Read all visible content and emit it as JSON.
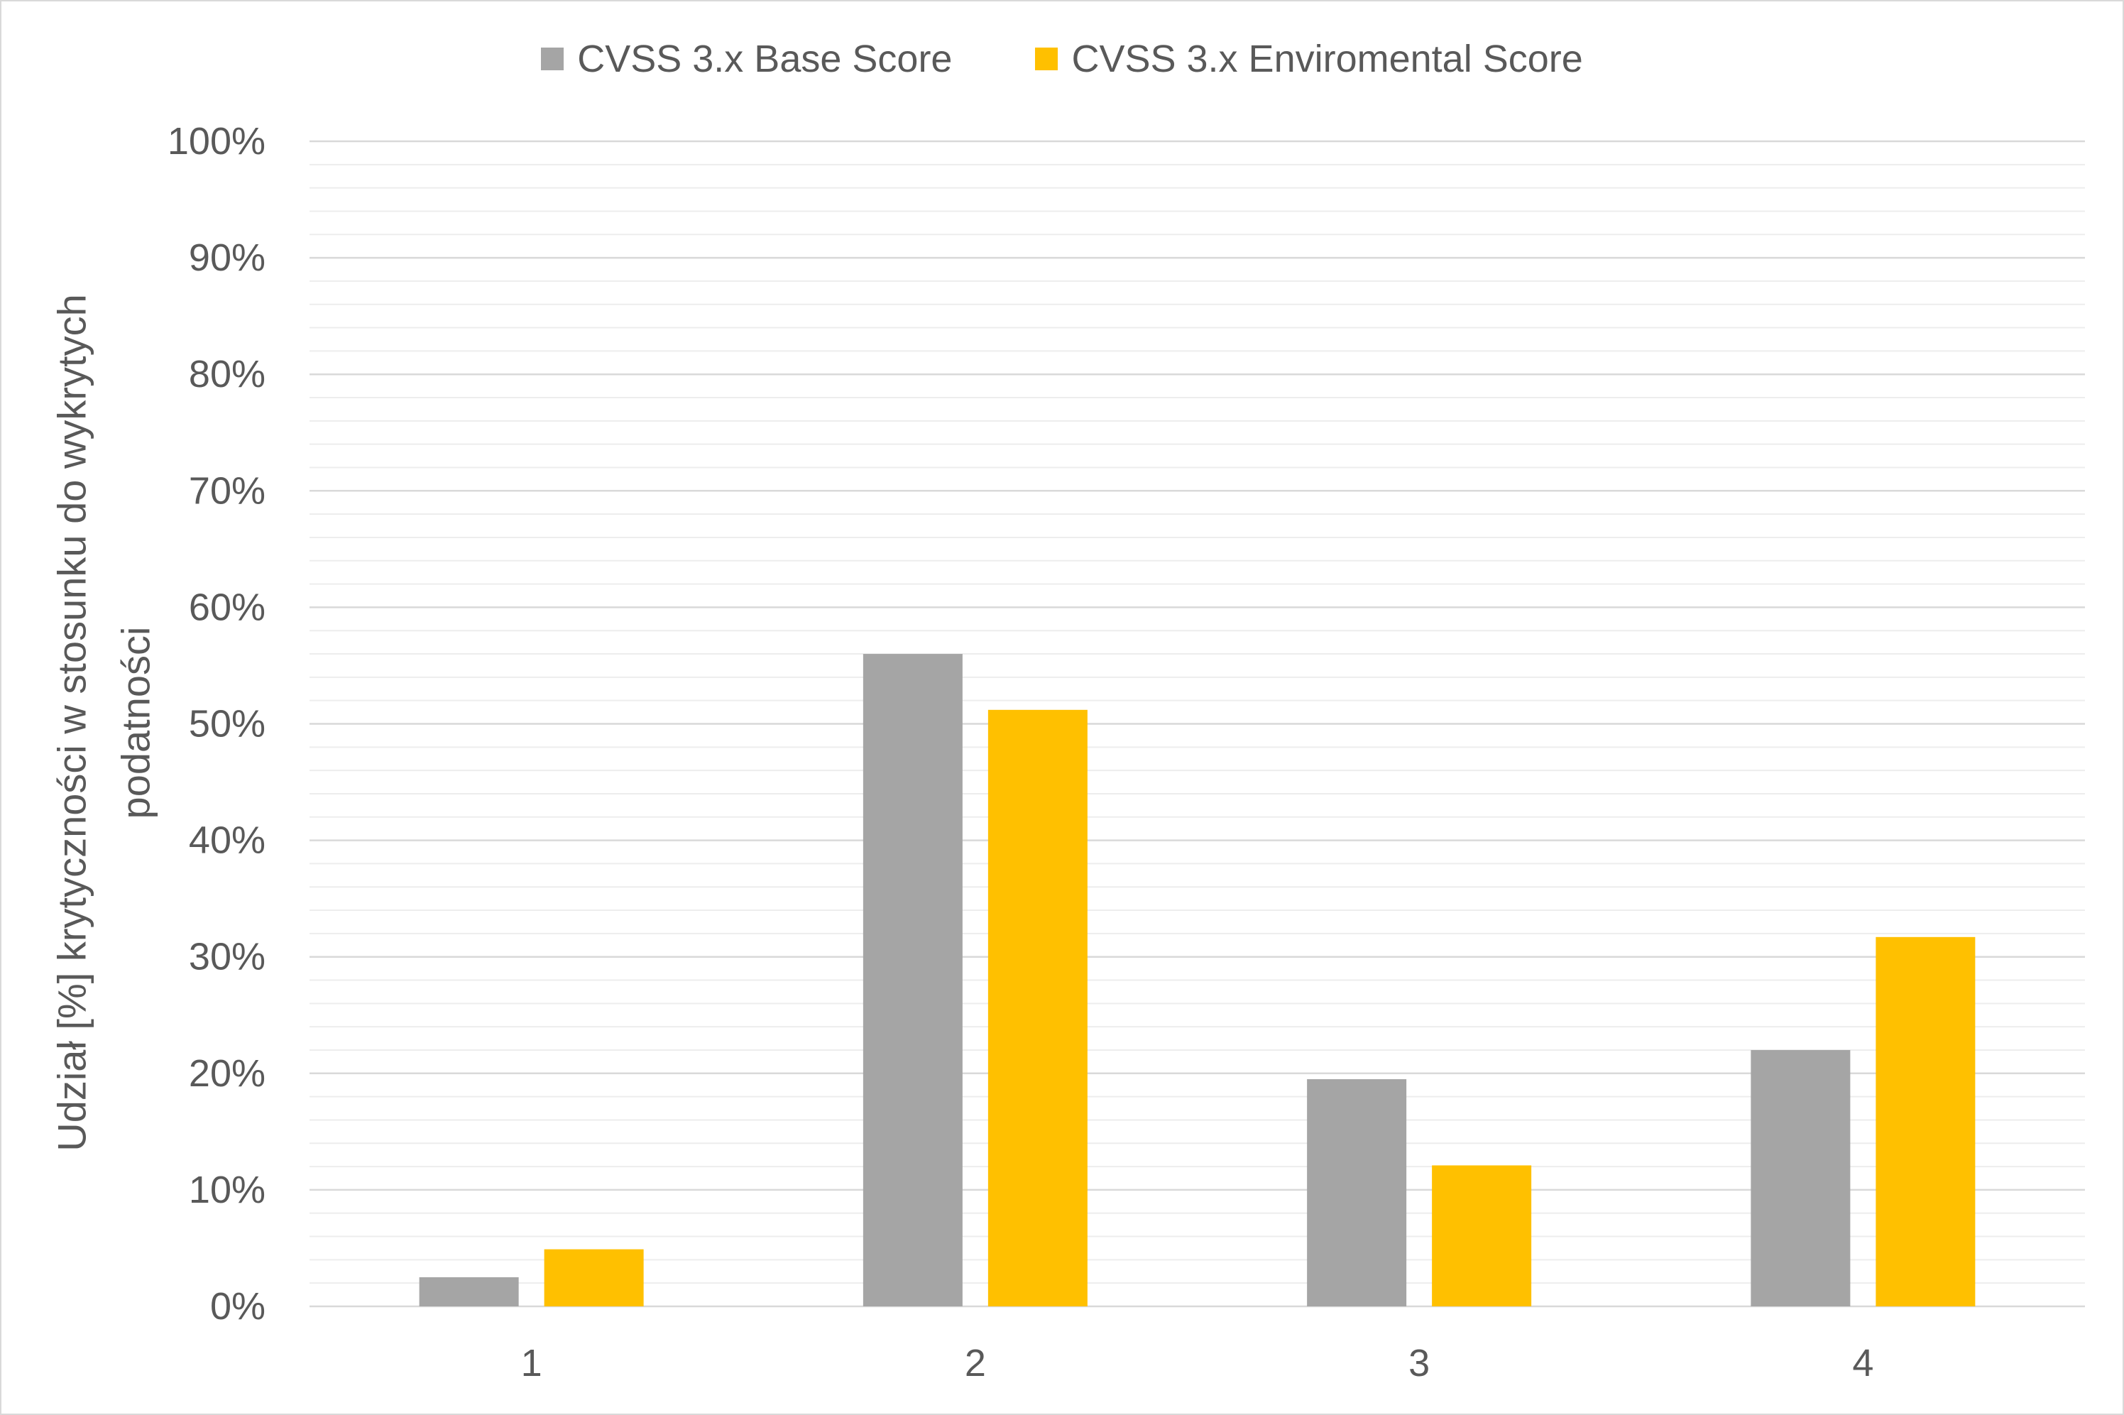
{
  "chart_data": {
    "type": "bar",
    "categories": [
      "1",
      "2",
      "3",
      "4"
    ],
    "series": [
      {
        "name": "CVSS 3.x Base Score",
        "color": "#A5A5A5",
        "values": [
          2.5,
          56.0,
          19.5,
          22.0
        ]
      },
      {
        "name": "CVSS 3.x Enviromental Score",
        "color": "#FFC000",
        "values": [
          4.9,
          51.2,
          12.1,
          31.7
        ]
      }
    ],
    "ylabel": [
      "Udział [%] krytyczności w stosunku do wykrytych",
      "podatności"
    ],
    "ylim": [
      0,
      100
    ],
    "ytick_labels": [
      "0%",
      "10%",
      "20%",
      "30%",
      "40%",
      "50%",
      "60%",
      "70%",
      "80%",
      "90%",
      "100%"
    ],
    "y_major_step": 10,
    "y_minor_step": 2,
    "grid": {
      "major": true,
      "minor": true
    },
    "legend": {
      "position": "top"
    }
  }
}
